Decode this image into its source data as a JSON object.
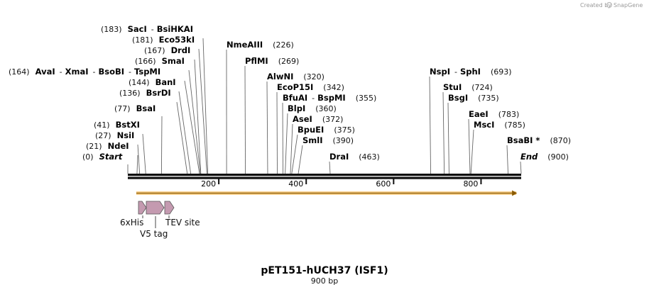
{
  "credit": {
    "created_by": "Created by",
    "brand": "SnapGene"
  },
  "map": {
    "title": "pET151-hUCH37 (ISF1)",
    "length_label": "900 bp",
    "length_bp": 900,
    "accent_color": "#f0a830",
    "feature_color": "#c49ab0"
  },
  "ruler": [
    {
      "bp": 200,
      "label": "200"
    },
    {
      "bp": 400,
      "label": "400"
    },
    {
      "bp": 600,
      "label": "600"
    },
    {
      "bp": 800,
      "label": "800"
    }
  ],
  "sites": [
    {
      "pos": "(183)",
      "name": "SacI",
      "name2": "BsiHKAI",
      "bp": 183
    },
    {
      "pos": "(181)",
      "name": "Eco53kI",
      "bp": 181
    },
    {
      "pos": "(167)",
      "name": "DrdI",
      "bp": 167
    },
    {
      "pos": "(166)",
      "name": "SmaI",
      "bp": 166
    },
    {
      "pos": "(164)",
      "name": "AvaI",
      "name2": "XmaI",
      "name3": "BsoBI",
      "name4": "TspMI",
      "bp": 164
    },
    {
      "pos": "(144)",
      "name": "BanI",
      "bp": 144
    },
    {
      "pos": "(136)",
      "name": "BsrDI",
      "bp": 136
    },
    {
      "pos": "(77)",
      "name": "BsaI",
      "bp": 77
    },
    {
      "pos": "(41)",
      "name": "BstXI",
      "bp": 41
    },
    {
      "pos": "(27)",
      "name": "NsiI",
      "bp": 27
    },
    {
      "pos": "(21)",
      "name": "NdeI",
      "bp": 21
    },
    {
      "pos": "(0)",
      "name": "Start",
      "bp": 0,
      "italic": true
    },
    {
      "pos": "(226)",
      "name": "NmeAIII",
      "bp": 226
    },
    {
      "pos": "(269)",
      "name": "PflMI",
      "bp": 269
    },
    {
      "pos": "(320)",
      "name": "AlwNI",
      "bp": 320
    },
    {
      "pos": "(342)",
      "name": "EcoP15I",
      "bp": 342
    },
    {
      "pos": "(355)",
      "name": "BfuAI",
      "name2": "BspMI",
      "bp": 355
    },
    {
      "pos": "(360)",
      "name": "BlpI",
      "bp": 360
    },
    {
      "pos": "(372)",
      "name": "AseI",
      "bp": 372
    },
    {
      "pos": "(375)",
      "name": "BpuEI",
      "bp": 375
    },
    {
      "pos": "(390)",
      "name": "SmlI",
      "bp": 390
    },
    {
      "pos": "(463)",
      "name": "DraI",
      "bp": 463
    },
    {
      "pos": "(693)",
      "name": "NspI",
      "name2": "SphI",
      "bp": 693
    },
    {
      "pos": "(724)",
      "name": "StuI",
      "bp": 724
    },
    {
      "pos": "(735)",
      "name": "BsgI",
      "bp": 735
    },
    {
      "pos": "(783)",
      "name": "EaeI",
      "bp": 783
    },
    {
      "pos": "(785)",
      "name": "MscI",
      "bp": 785
    },
    {
      "pos": "(870)",
      "name": "BsaBI *",
      "bp": 870
    },
    {
      "pos": "(900)",
      "name": "End",
      "bp": 900,
      "italic": true
    }
  ],
  "features": [
    {
      "name": "6xHis",
      "start_bp": 24,
      "end_bp": 40
    },
    {
      "name": "V5 tag",
      "start_bp": 42,
      "end_bp": 84
    },
    {
      "name": "TEV site",
      "start_bp": 87,
      "end_bp": 107
    }
  ],
  "orf": {
    "start_bp": 21,
    "end_bp": 897
  }
}
